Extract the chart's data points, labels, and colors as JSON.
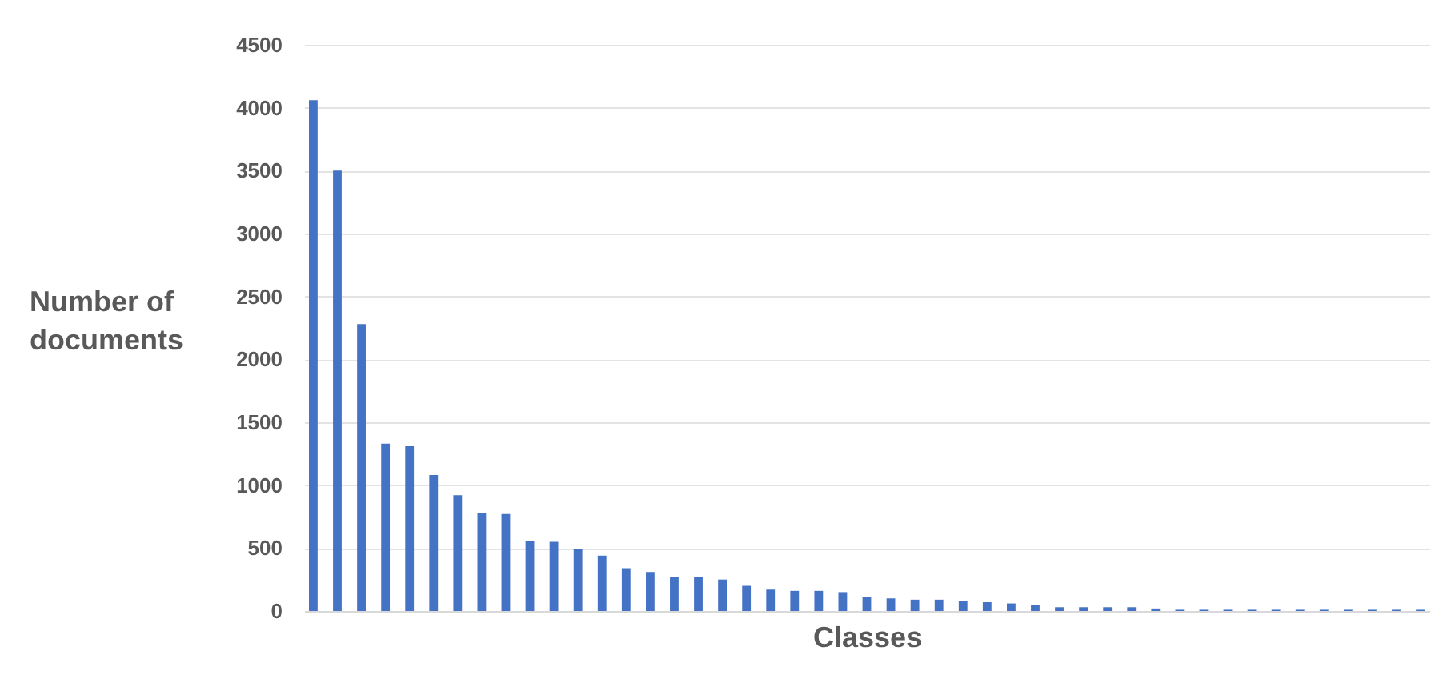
{
  "chart_data": {
    "type": "bar",
    "xlabel": "Classes",
    "ylabel": "Number of documents",
    "categories": [
      null,
      null,
      null,
      null,
      null,
      null,
      null,
      null,
      null,
      null,
      null,
      null,
      null,
      null,
      null,
      null,
      null,
      null,
      null,
      null,
      null,
      null,
      null,
      null,
      null,
      null,
      null,
      null,
      null,
      null,
      null,
      null,
      null,
      null,
      null,
      null,
      null,
      null,
      null,
      null,
      null,
      null,
      null,
      null,
      null,
      null,
      null
    ],
    "values": [
      4060,
      3500,
      2280,
      1330,
      1310,
      1080,
      920,
      780,
      770,
      560,
      550,
      490,
      440,
      340,
      310,
      270,
      270,
      250,
      200,
      170,
      160,
      160,
      150,
      110,
      100,
      90,
      90,
      80,
      70,
      60,
      50,
      30,
      30,
      30,
      30,
      20,
      10,
      10,
      10,
      10,
      10,
      10,
      10,
      10,
      10,
      10,
      10
    ],
    "color": "#4472c4",
    "ylim": [
      0,
      4500
    ],
    "yticks": [
      0,
      500,
      1000,
      1500,
      2000,
      2500,
      3000,
      3500,
      4000,
      4500
    ],
    "grid": "y",
    "tick_labels": "y"
  }
}
